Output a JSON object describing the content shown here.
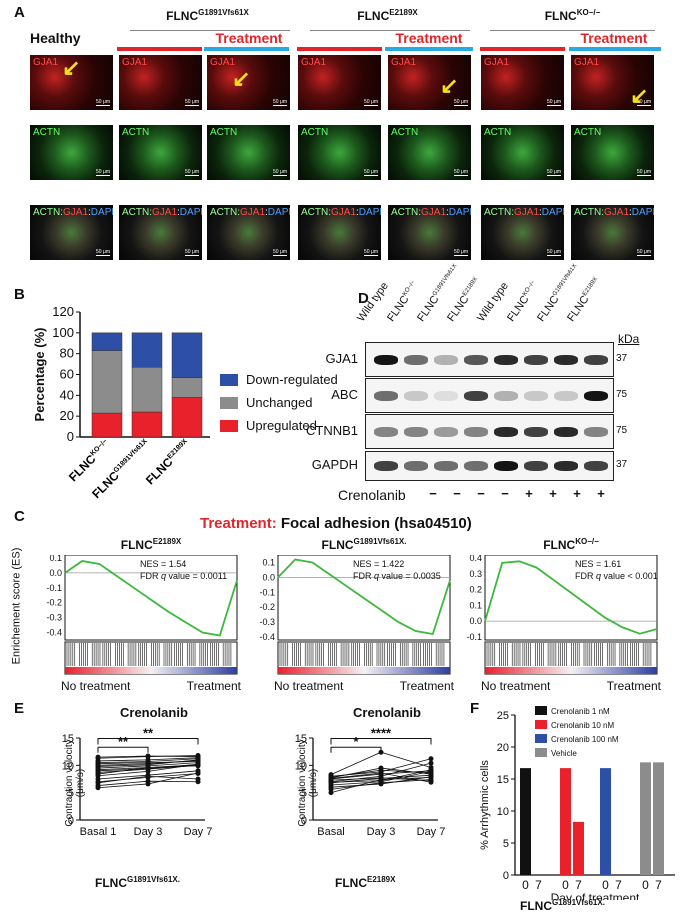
{
  "panelA": {
    "label": "A",
    "healthy": "Healthy",
    "groups": [
      {
        "base": "FLNC",
        "sup": "G1891Vfs61X"
      },
      {
        "base": "FLNC",
        "sup": "E2189X"
      },
      {
        "base": "FLNC",
        "sup": "KO−/−"
      }
    ],
    "treatment": "Treatment",
    "row_labels": {
      "gja1": "GJA1",
      "actn": "ACTN",
      "merge_actn": "ACTN:",
      "merge_gja1": "GJA1",
      "merge_colon": ":",
      "merge_dapi": "DAPI"
    },
    "scale_bar": "50 μm"
  },
  "panelB": {
    "label": "B",
    "legend": [
      "Down-regulated",
      "Unchanged",
      "Upregulated"
    ]
  },
  "panelC": {
    "label": "C",
    "title_red": "Treatment:",
    "title_black": " Focal adhesion (hsa04510)",
    "ylabel": "Enrichement score (ES)",
    "plots": [
      {
        "base": "FLNC",
        "sup": "E2189X",
        "nes": "NES = 1.54",
        "fdr_pre": "FDR ",
        "fdr_q": "q",
        "fdr_post": " value = 0.0011",
        "left": "No treatment",
        "right": "Treatment"
      },
      {
        "base": "FLNC",
        "sup": "G1891Vfs61X.",
        "nes": "NES = 1.422",
        "fdr_pre": "FDR ",
        "fdr_q": "q",
        "fdr_post": " value = 0.0035",
        "left": "No treatment",
        "right": "Treatment"
      },
      {
        "base": "FLNC",
        "sup": "KO−/−",
        "nes": "NES = 1.61",
        "fdr_pre": "FDR ",
        "fdr_q": "q",
        "fdr_post": " value < 0.001",
        "left": "No treatment",
        "right": "Treatment"
      }
    ]
  },
  "panelD": {
    "label": "D",
    "lanes": [
      {
        "base": "Wild type",
        "sup": ""
      },
      {
        "base": "FLNC",
        "sup": "KO−/−"
      },
      {
        "base": "FLNC",
        "sup": "G1891Vfs61X"
      },
      {
        "base": "FLNC",
        "sup": "E2189X"
      },
      {
        "base": "Wild type",
        "sup": ""
      },
      {
        "base": "FLNC",
        "sup": "KO−/−"
      },
      {
        "base": "FLNC",
        "sup": "G1891Vfs61X"
      },
      {
        "base": "FLNC",
        "sup": "E2189X"
      }
    ],
    "kda": "kDa",
    "blots": [
      {
        "name": "GJA1",
        "mw": "37"
      },
      {
        "name": "ABC",
        "mw": "75"
      },
      {
        "name": "CTNNB1",
        "mw": "75"
      },
      {
        "name": "GAPDH",
        "mw": "37"
      }
    ],
    "crenolanib": "Crenolanib",
    "signs": [
      "−",
      "−",
      "−",
      "−",
      "+",
      "+",
      "+",
      "+"
    ]
  },
  "panelE": {
    "label": "E",
    "plot1": {
      "title": "Crenolanib",
      "ylabel": "Contraction velocity (μm/s)",
      "group_base": "FLNC",
      "group_sup": "G1891Vfs61X.",
      "sig1": "**",
      "sig2": "**"
    },
    "plot2": {
      "title": "Crenolanib",
      "ylabel": "Contraction velocity (μm/s)",
      "group_base": "FLNC",
      "group_sup": "E2189X",
      "sig1": "*",
      "sig2": "****"
    }
  },
  "panelF": {
    "label": "F",
    "group_base": "FLNC",
    "group_sup": "G1891Vfs61X."
  },
  "chart_data": [
    {
      "type": "bar",
      "stacked": true,
      "categories": [
        "FLNC KO−/−",
        "FLNC G1891Vfs61X",
        "FLNC E2189X"
      ],
      "series": [
        {
          "name": "Upregulated",
          "values": [
            23,
            24,
            38
          ],
          "color": "#e8212a"
        },
        {
          "name": "Unchanged",
          "values": [
            60,
            43,
            19
          ],
          "color": "#8c8c8c"
        },
        {
          "name": "Down-regulated",
          "values": [
            17,
            33,
            43
          ],
          "color": "#2d4fa6"
        }
      ],
      "ylabel": "Percentage (%)",
      "ylim": [
        0,
        120
      ],
      "yticks": [
        0,
        20,
        40,
        60,
        80,
        100,
        120
      ],
      "legend": "right"
    },
    {
      "type": "line",
      "series": [
        {
          "name": "FLNC E2189X",
          "x": [
            0,
            0.1,
            0.2,
            0.3,
            0.4,
            0.5,
            0.6,
            0.7,
            0.8,
            0.9,
            1.0
          ],
          "y": [
            0.0,
            0.08,
            0.06,
            -0.02,
            -0.1,
            -0.18,
            -0.26,
            -0.33,
            -0.4,
            -0.42,
            -0.05
          ],
          "yticks": [
            0.1,
            0.0,
            -0.1,
            -0.2,
            -0.3,
            -0.4
          ],
          "ylim": [
            -0.45,
            0.12
          ]
        },
        {
          "name": "FLNC G1891Vfs61X.",
          "x": [
            0,
            0.1,
            0.2,
            0.3,
            0.4,
            0.5,
            0.6,
            0.7,
            0.8,
            0.9,
            1.0
          ],
          "y": [
            0.0,
            0.12,
            0.1,
            0.02,
            -0.06,
            -0.14,
            -0.22,
            -0.3,
            -0.36,
            -0.38,
            -0.02
          ],
          "yticks": [
            0.1,
            0.0,
            -0.1,
            -0.2,
            -0.3,
            -0.4
          ],
          "ylim": [
            -0.42,
            0.15
          ]
        },
        {
          "name": "FLNC KO−/−",
          "x": [
            0,
            0.1,
            0.2,
            0.3,
            0.4,
            0.5,
            0.6,
            0.7,
            0.8,
            0.9,
            1.0
          ],
          "y": [
            0.0,
            0.37,
            0.38,
            0.34,
            0.26,
            0.18,
            0.1,
            0.02,
            -0.04,
            -0.08,
            -0.05
          ],
          "yticks": [
            0.4,
            0.3,
            0.2,
            0.1,
            0.0,
            -0.1
          ],
          "ylim": [
            -0.12,
            0.42
          ]
        }
      ]
    },
    {
      "type": "scatter",
      "categories": [
        "Basal 1",
        "Day 3",
        "Day 7"
      ],
      "ylabel": "Contraction velocity (μm/s)",
      "ylim": [
        0,
        15
      ],
      "yticks": [
        0,
        5,
        10,
        15
      ],
      "paired_lines": [
        [
          9.2,
          9.6,
          10.1
        ],
        [
          10.3,
          10.5,
          10.7
        ],
        [
          8.1,
          8.9,
          10.2
        ],
        [
          9.8,
          10.1,
          11.0
        ],
        [
          7.0,
          7.8,
          8.5
        ],
        [
          10.8,
          11.0,
          11.4
        ],
        [
          11.3,
          11.6,
          11.8
        ],
        [
          6.3,
          7.1,
          7.0
        ],
        [
          9.5,
          9.9,
          10.5
        ],
        [
          5.9,
          6.6,
          8.6
        ],
        [
          8.7,
          9.3,
          10.0
        ],
        [
          10.0,
          10.3,
          10.9
        ],
        [
          7.5,
          8.2,
          9.0
        ],
        [
          9.0,
          9.4,
          10.2
        ],
        [
          11.5,
          11.7,
          11.6
        ],
        [
          8.4,
          9.6,
          9.9
        ],
        [
          6.8,
          8.0,
          7.5
        ],
        [
          10.5,
          10.7,
          11.2
        ]
      ],
      "significance": [
        {
          "pair": [
            "Basal 1",
            "Day 3"
          ],
          "label": "**"
        },
        {
          "pair": [
            "Basal 1",
            "Day 7"
          ],
          "label": "**"
        }
      ]
    },
    {
      "type": "scatter",
      "categories": [
        "Basal",
        "Day 3",
        "Day 7"
      ],
      "ylabel": "Contraction velocity (μm/s)",
      "ylim": [
        0,
        15
      ],
      "yticks": [
        0,
        5,
        10,
        15
      ],
      "paired_lines": [
        [
          7.5,
          8.4,
          9.0
        ],
        [
          6.8,
          7.6,
          8.2
        ],
        [
          8.3,
          12.4,
          9.6
        ],
        [
          5.0,
          7.4,
          7.8
        ],
        [
          7.0,
          8.0,
          10.4
        ],
        [
          7.9,
          9.1,
          8.6
        ],
        [
          6.4,
          7.0,
          8.9
        ],
        [
          7.3,
          7.7,
          7.2
        ],
        [
          8.0,
          8.8,
          11.2
        ],
        [
          6.0,
          6.6,
          7.9
        ],
        [
          7.7,
          9.5,
          8.4
        ],
        [
          6.9,
          7.2,
          9.2
        ],
        [
          7.6,
          8.6,
          6.9
        ],
        [
          5.6,
          6.8,
          7.4
        ]
      ],
      "significance": [
        {
          "pair": [
            "Basal",
            "Day 3"
          ],
          "label": "*"
        },
        {
          "pair": [
            "Basal",
            "Day 7"
          ],
          "label": "****"
        }
      ]
    },
    {
      "type": "bar",
      "ylabel": "% Arrhythmic cells",
      "xlabel": "Day of treatment",
      "ylim": [
        0,
        25
      ],
      "yticks": [
        0,
        5,
        10,
        15,
        20,
        25
      ],
      "groups": [
        {
          "name": "Crenolanib 1 nM",
          "color": "#111111",
          "days": [
            "0",
            "7"
          ],
          "values": [
            16.7,
            0
          ]
        },
        {
          "name": "Crenolanib 10 nM",
          "color": "#e8212a",
          "days": [
            "0",
            "7"
          ],
          "values": [
            16.7,
            8.3
          ]
        },
        {
          "name": "Crenolanib 100 nM",
          "color": "#2d4fa6",
          "days": [
            "0",
            "7"
          ],
          "values": [
            16.7,
            0
          ]
        },
        {
          "name": "Vehicle",
          "color": "#8c8c8c",
          "days": [
            "0",
            "7"
          ],
          "values": [
            17.6,
            17.6
          ]
        }
      ]
    }
  ]
}
